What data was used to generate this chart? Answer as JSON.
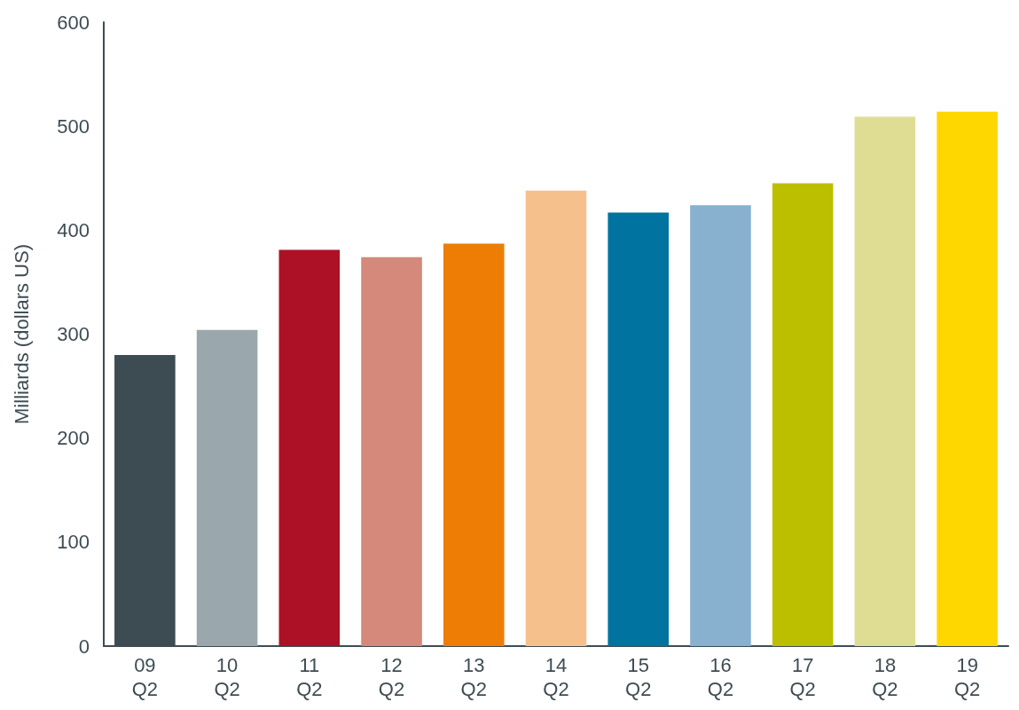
{
  "chart_data": {
    "type": "bar",
    "ylabel": "Milliards (dollars US)",
    "categories": [
      "09\nQ2",
      "10\nQ2",
      "11\nQ2",
      "12\nQ2",
      "13\nQ2",
      "14\nQ2",
      "15\nQ2",
      "16\nQ2",
      "17\nQ2",
      "18\nQ2",
      "19\nQ2"
    ],
    "values": [
      280,
      304,
      381,
      374,
      387,
      438,
      417,
      424,
      445,
      509,
      514
    ],
    "colors": [
      "#3d4c53",
      "#9aa8ae",
      "#ad1126",
      "#d4897a",
      "#ee7d05",
      "#f6c08d",
      "#0073a0",
      "#87b1cf",
      "#bcbf00",
      "#dfdd94",
      "#ffd700"
    ],
    "ylim": [
      0,
      600
    ],
    "yticks": [
      0,
      100,
      200,
      300,
      400,
      500,
      600
    ],
    "grid": false
  }
}
